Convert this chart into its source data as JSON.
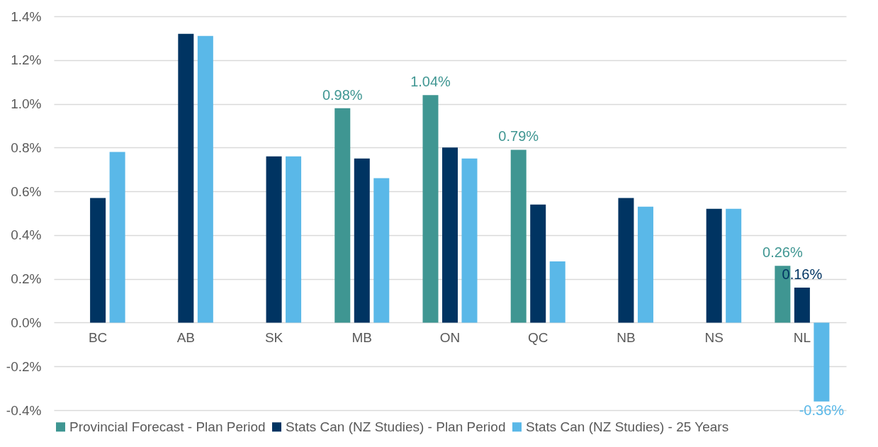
{
  "chart_data": {
    "type": "bar",
    "categories": [
      "BC",
      "AB",
      "SK",
      "MB",
      "ON",
      "QC",
      "NB",
      "NS",
      "NL"
    ],
    "series": [
      {
        "name": "Provincial Forecast - Plan Period",
        "color": "#3f9692",
        "values": [
          null,
          null,
          null,
          0.98,
          1.04,
          0.79,
          null,
          null,
          0.26
        ],
        "value_labels": [
          null,
          null,
          null,
          "0.98%",
          "1.04%",
          "0.79%",
          null,
          null,
          "0.26%"
        ]
      },
      {
        "name": "Stats Can (NZ Studies) - Plan Period",
        "color": "#003462",
        "values": [
          0.57,
          1.32,
          0.76,
          0.75,
          0.8,
          0.54,
          0.57,
          0.52,
          0.16
        ],
        "value_labels": [
          null,
          null,
          null,
          null,
          null,
          null,
          null,
          null,
          "0.16%"
        ]
      },
      {
        "name": "Stats Can (NZ Studies) - 25 Years",
        "color": "#5ab8e8",
        "values": [
          0.78,
          1.31,
          0.76,
          0.66,
          0.75,
          0.28,
          0.53,
          0.52,
          -0.36
        ],
        "value_labels": [
          null,
          null,
          null,
          null,
          null,
          null,
          null,
          null,
          "-0.36%"
        ]
      }
    ],
    "ylim": [
      -0.4,
      1.4
    ],
    "yticks": [
      {
        "value": -0.4,
        "label": "-0.4%"
      },
      {
        "value": -0.2,
        "label": "-0.2%"
      },
      {
        "value": 0,
        "label": "0.0%"
      },
      {
        "value": 0.2,
        "label": "0.2%"
      },
      {
        "value": 0.4,
        "label": "0.4%"
      },
      {
        "value": 0.6,
        "label": "0.6%"
      },
      {
        "value": 0.8,
        "label": "0.8%"
      },
      {
        "value": 1.0,
        "label": "1.0%"
      },
      {
        "value": 1.2,
        "label": "1.2%"
      },
      {
        "value": 1.4,
        "label": "1.4%"
      }
    ],
    "grid": "y",
    "legend": "bottom"
  }
}
